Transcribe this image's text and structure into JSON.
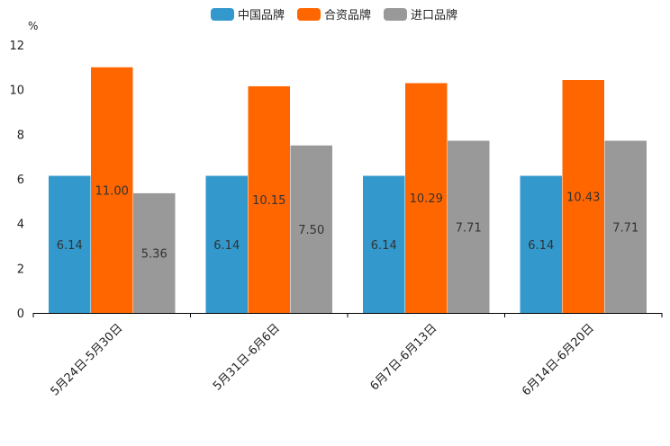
{
  "chart_data": {
    "type": "bar",
    "title": "",
    "xlabel": "",
    "ylabel": "",
    "unit": "%",
    "ylim": [
      0,
      12
    ],
    "yticks": [
      0,
      2,
      4,
      6,
      8,
      10,
      12
    ],
    "legend_position": "top-center",
    "grid": false,
    "categories": [
      "5月24日-5月30日",
      "5月31日-6月6日",
      "6月7日-6月13日",
      "6月14日-6月20日"
    ],
    "series": [
      {
        "name": "中国品牌",
        "color": "#3399CC",
        "values": [
          6.14,
          6.14,
          6.14,
          6.14
        ],
        "labels": [
          "6.14",
          "6.14",
          "6.14",
          "6.14"
        ]
      },
      {
        "name": "合资品牌",
        "color": "#FF6600",
        "values": [
          11.0,
          10.15,
          10.29,
          10.43
        ],
        "labels": [
          "11.00",
          "10.15",
          "10.29",
          "10.43"
        ]
      },
      {
        "name": "进口品牌",
        "color": "#999999",
        "values": [
          5.36,
          7.5,
          7.71,
          7.71
        ],
        "labels": [
          "5.36",
          "7.50",
          "7.71",
          "7.71"
        ]
      }
    ]
  }
}
